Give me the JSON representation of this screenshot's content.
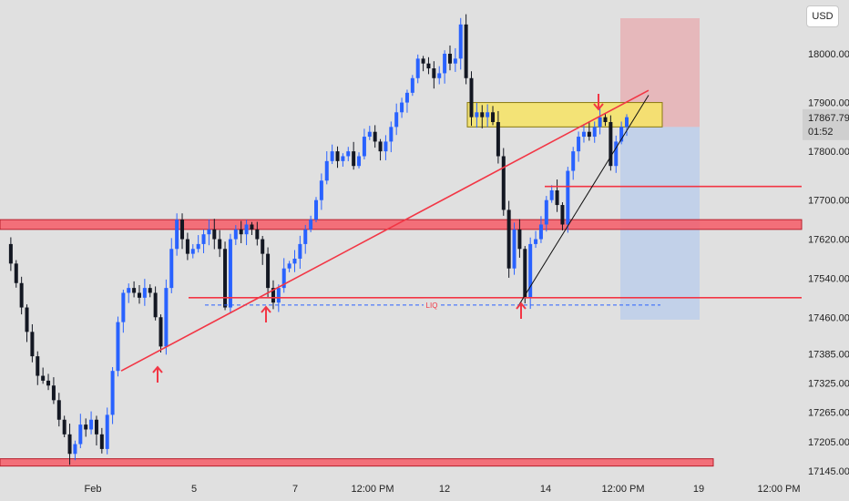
{
  "chart_data": {
    "type": "candlestick",
    "currency": "USD",
    "y_axis": {
      "ylim": [
        17120,
        18120
      ],
      "ticks": [
        18000.0,
        17900.0,
        17800.0,
        17700.0,
        17620.0,
        17540.0,
        17460.0,
        17385.0,
        17325.0,
        17265.0,
        17205.0,
        17145.0
      ]
    },
    "x_axis": {
      "ticks": [
        "Feb",
        "5",
        "7",
        "12:00 PM",
        "12",
        "14",
        "12:00 PM",
        "19",
        "12:00 PM"
      ]
    },
    "current_price": {
      "label": "17867.79",
      "value": 17867.79,
      "countdown": "01:52"
    },
    "colors": {
      "up": "#2962ff",
      "down": "#131722",
      "resistance_line": "#f23645",
      "zone_fill": "#f7525f",
      "supply_zone": "#f5e36a",
      "stop_fill": "#f7525f",
      "target_fill": "#aac4f0",
      "liq_line": "#2962ff"
    },
    "horizontal_zones": [
      {
        "name": "upper-support-zone",
        "low": 17640,
        "high": 17660
      },
      {
        "name": "bottom-support-zone",
        "low": 17155,
        "high": 17170
      }
    ],
    "horizontal_lines": [
      {
        "name": "liq-resistance-line",
        "value": 17500
      },
      {
        "name": "local-resistance-line",
        "value": 17728
      }
    ],
    "liq_label": "LIQ",
    "liq_level": 17485,
    "supply_zone": {
      "low": 17850,
      "high": 17900
    },
    "position": {
      "entry": 17850,
      "stop": 18090,
      "target": 17455
    },
    "trendlines": [
      {
        "name": "rising-trendline",
        "from": [
          "Feb 3",
          17350
        ],
        "to": [
          "Feb 16",
          17925
        ]
      },
      {
        "name": "steep-trendline",
        "from": [
          "Feb 13",
          17480
        ],
        "to": [
          "Feb 16",
          17915
        ]
      }
    ],
    "arrows": [
      {
        "name": "up-arrow-1",
        "direction": "up",
        "at": 17340
      },
      {
        "name": "up-arrow-2",
        "direction": "up",
        "at": 17460
      },
      {
        "name": "up-arrow-3",
        "direction": "up",
        "at": 17460
      },
      {
        "name": "down-arrow-1",
        "direction": "down",
        "at": 17900
      }
    ],
    "price_path": [
      17610,
      17570,
      17530,
      17480,
      17430,
      17380,
      17340,
      17330,
      17320,
      17290,
      17250,
      17220,
      17180,
      17200,
      17240,
      17230,
      17250,
      17220,
      17190,
      17260,
      17350,
      17450,
      17510,
      17520,
      17510,
      17500,
      17520,
      17510,
      17460,
      17400,
      17520,
      17600,
      17660,
      17620,
      17590,
      17600,
      17610,
      17630,
      17640,
      17620,
      17600,
      17480,
      17620,
      17640,
      17630,
      17650,
      17640,
      17620,
      17590,
      17520,
      17490,
      17520,
      17560,
      17570,
      17580,
      17610,
      17640,
      17660,
      17700,
      17740,
      17780,
      17800,
      17780,
      17790,
      17800,
      17770,
      17790,
      17830,
      17840,
      17820,
      17800,
      17820,
      17850,
      17880,
      17900,
      17920,
      17950,
      17990,
      17980,
      17970,
      17950,
      17960,
      18000,
      17980,
      17990,
      18060,
      17950,
      17870,
      17880,
      17870,
      17880,
      17860,
      17790,
      17680,
      17560,
      17640,
      17600,
      17500,
      17610,
      17620,
      17650,
      17700,
      17720,
      17690,
      17650,
      17760,
      17800,
      17830,
      17840,
      17830,
      17850,
      17870,
      17860,
      17770,
      17820,
      17850,
      17870
    ]
  }
}
